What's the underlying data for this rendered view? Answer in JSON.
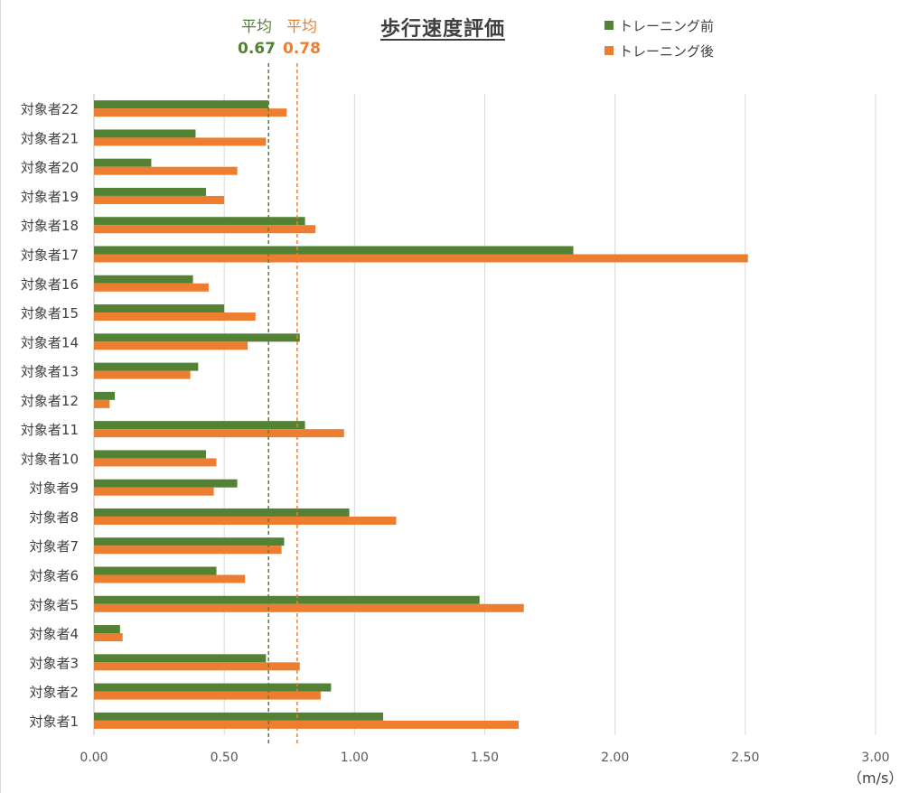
{
  "chart_data": {
    "type": "bar",
    "orientation": "horizontal",
    "title": "歩行速度評価",
    "xlabel": "（m/s）",
    "xlim": [
      0,
      3.0
    ],
    "x_ticks": [
      "0.00",
      "0.50",
      "1.00",
      "1.50",
      "2.00",
      "2.50",
      "3.00"
    ],
    "categories": [
      "対象者1",
      "対象者2",
      "対象者3",
      "対象者4",
      "対象者5",
      "対象者6",
      "対象者7",
      "対象者8",
      "対象者9",
      "対象者10",
      "対象者11",
      "対象者12",
      "対象者13",
      "対象者14",
      "対象者15",
      "対象者16",
      "対象者17",
      "対象者18",
      "対象者19",
      "対象者20",
      "対象者21",
      "対象者22"
    ],
    "series": [
      {
        "name": "トレーニング前",
        "color": "#548235",
        "values": [
          1.11,
          0.91,
          0.66,
          0.1,
          1.48,
          0.47,
          0.73,
          0.98,
          0.55,
          0.43,
          0.81,
          0.08,
          0.4,
          0.79,
          0.5,
          0.38,
          1.84,
          0.81,
          0.43,
          0.22,
          0.39,
          0.67
        ]
      },
      {
        "name": "トレーニング後",
        "color": "#ed7d31",
        "values": [
          1.63,
          0.87,
          0.79,
          0.11,
          1.65,
          0.58,
          0.72,
          1.16,
          0.46,
          0.47,
          0.96,
          0.06,
          0.37,
          0.59,
          0.62,
          0.44,
          2.51,
          0.85,
          0.5,
          0.55,
          0.66,
          0.74
        ]
      }
    ],
    "legend_position": "top-right",
    "grid": true,
    "averages": [
      {
        "label": "平均",
        "value": 0.67,
        "value_text": "0.67",
        "color": "#548235"
      },
      {
        "label": "平均",
        "value": 0.78,
        "value_text": "0.78",
        "color": "#ed7d31"
      }
    ]
  }
}
